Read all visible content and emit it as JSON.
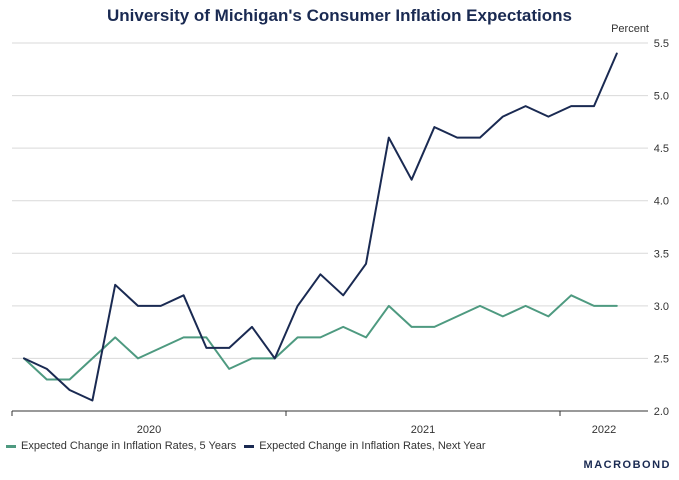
{
  "chart_data": {
    "type": "line",
    "title": "University of Michigan's Consumer Inflation Expectations",
    "ylabel": "Percent",
    "ylim": [
      2.0,
      5.5
    ],
    "yticks": [
      "2.0",
      "2.5",
      "3.0",
      "3.5",
      "4.0",
      "4.5",
      "5.0",
      "5.5"
    ],
    "x_tick_labels": [
      "2020",
      "2021",
      "2022"
    ],
    "series": [
      {
        "name": "Expected Change in Inflation Rates, 5 Years",
        "color": "#4e9a80",
        "values": [
          2.5,
          2.3,
          2.3,
          2.5,
          2.7,
          2.5,
          2.6,
          2.7,
          2.7,
          2.4,
          2.5,
          2.5,
          2.7,
          2.7,
          2.8,
          2.7,
          3.0,
          2.8,
          2.8,
          2.9,
          3.0,
          2.9,
          3.0,
          2.9,
          3.1,
          3.0,
          3.0
        ]
      },
      {
        "name": "Expected Change in Inflation Rates, Next Year",
        "color": "#1a2a52",
        "values": [
          2.5,
          2.4,
          2.2,
          2.1,
          3.2,
          3.0,
          3.0,
          3.1,
          2.6,
          2.6,
          2.8,
          2.5,
          3.0,
          3.3,
          3.1,
          3.4,
          4.6,
          4.2,
          4.7,
          4.6,
          4.6,
          4.8,
          4.9,
          4.8,
          4.9,
          4.9,
          5.4
        ]
      }
    ]
  },
  "brand": "MACROBOND"
}
